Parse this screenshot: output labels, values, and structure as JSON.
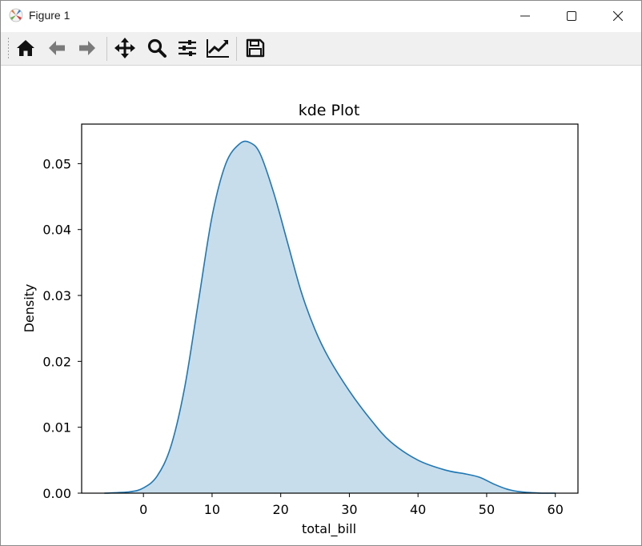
{
  "window": {
    "title": "Figure 1",
    "app_icon": "matplotlib-icon",
    "controls": [
      "minimize-icon",
      "maximize-icon",
      "close-icon"
    ]
  },
  "toolbar": {
    "buttons": [
      {
        "icon": "home-icon"
      },
      {
        "icon": "back-arrow-icon"
      },
      {
        "icon": "forward-arrow-icon"
      },
      {
        "icon": "pan-move-icon"
      },
      {
        "icon": "zoom-magnifier-icon"
      },
      {
        "icon": "configure-subplots-icon"
      },
      {
        "icon": "edit-axis-line-icon"
      },
      {
        "icon": "save-disk-icon"
      }
    ]
  },
  "colors": {
    "line": "#1f77b4",
    "fill": "#c6dbec",
    "axis": "#000000"
  },
  "chart_data": {
    "type": "area",
    "title": "kde Plot",
    "xlabel": "total_bill",
    "ylabel": "Density",
    "xlim": [
      -9,
      63.3
    ],
    "ylim": [
      0,
      0.056
    ],
    "xticks": [
      0,
      10,
      20,
      30,
      40,
      50,
      60
    ],
    "xtick_labels": [
      "0",
      "10",
      "20",
      "30",
      "40",
      "50",
      "60"
    ],
    "yticks": [
      0.0,
      0.01,
      0.02,
      0.03,
      0.04,
      0.05
    ],
    "ytick_labels": [
      "0.00",
      "0.01",
      "0.02",
      "0.03",
      "0.04",
      "0.05"
    ],
    "grid": false,
    "legend": false,
    "x": [
      -5.7,
      -2,
      0,
      2,
      4,
      6,
      8,
      10,
      12,
      14,
      15.5,
      17,
      19,
      21,
      23,
      25,
      27,
      30,
      33,
      36,
      40,
      44,
      47,
      49,
      51,
      53,
      55,
      58,
      60
    ],
    "density": [
      0.0,
      0.0002,
      0.0008,
      0.0026,
      0.0071,
      0.016,
      0.029,
      0.042,
      0.05,
      0.053,
      0.0532,
      0.0515,
      0.0455,
      0.038,
      0.0305,
      0.0248,
      0.0205,
      0.0155,
      0.0113,
      0.0078,
      0.005,
      0.0035,
      0.0029,
      0.0024,
      0.0014,
      0.0006,
      0.0002,
      0.0,
      0.0
    ]
  }
}
